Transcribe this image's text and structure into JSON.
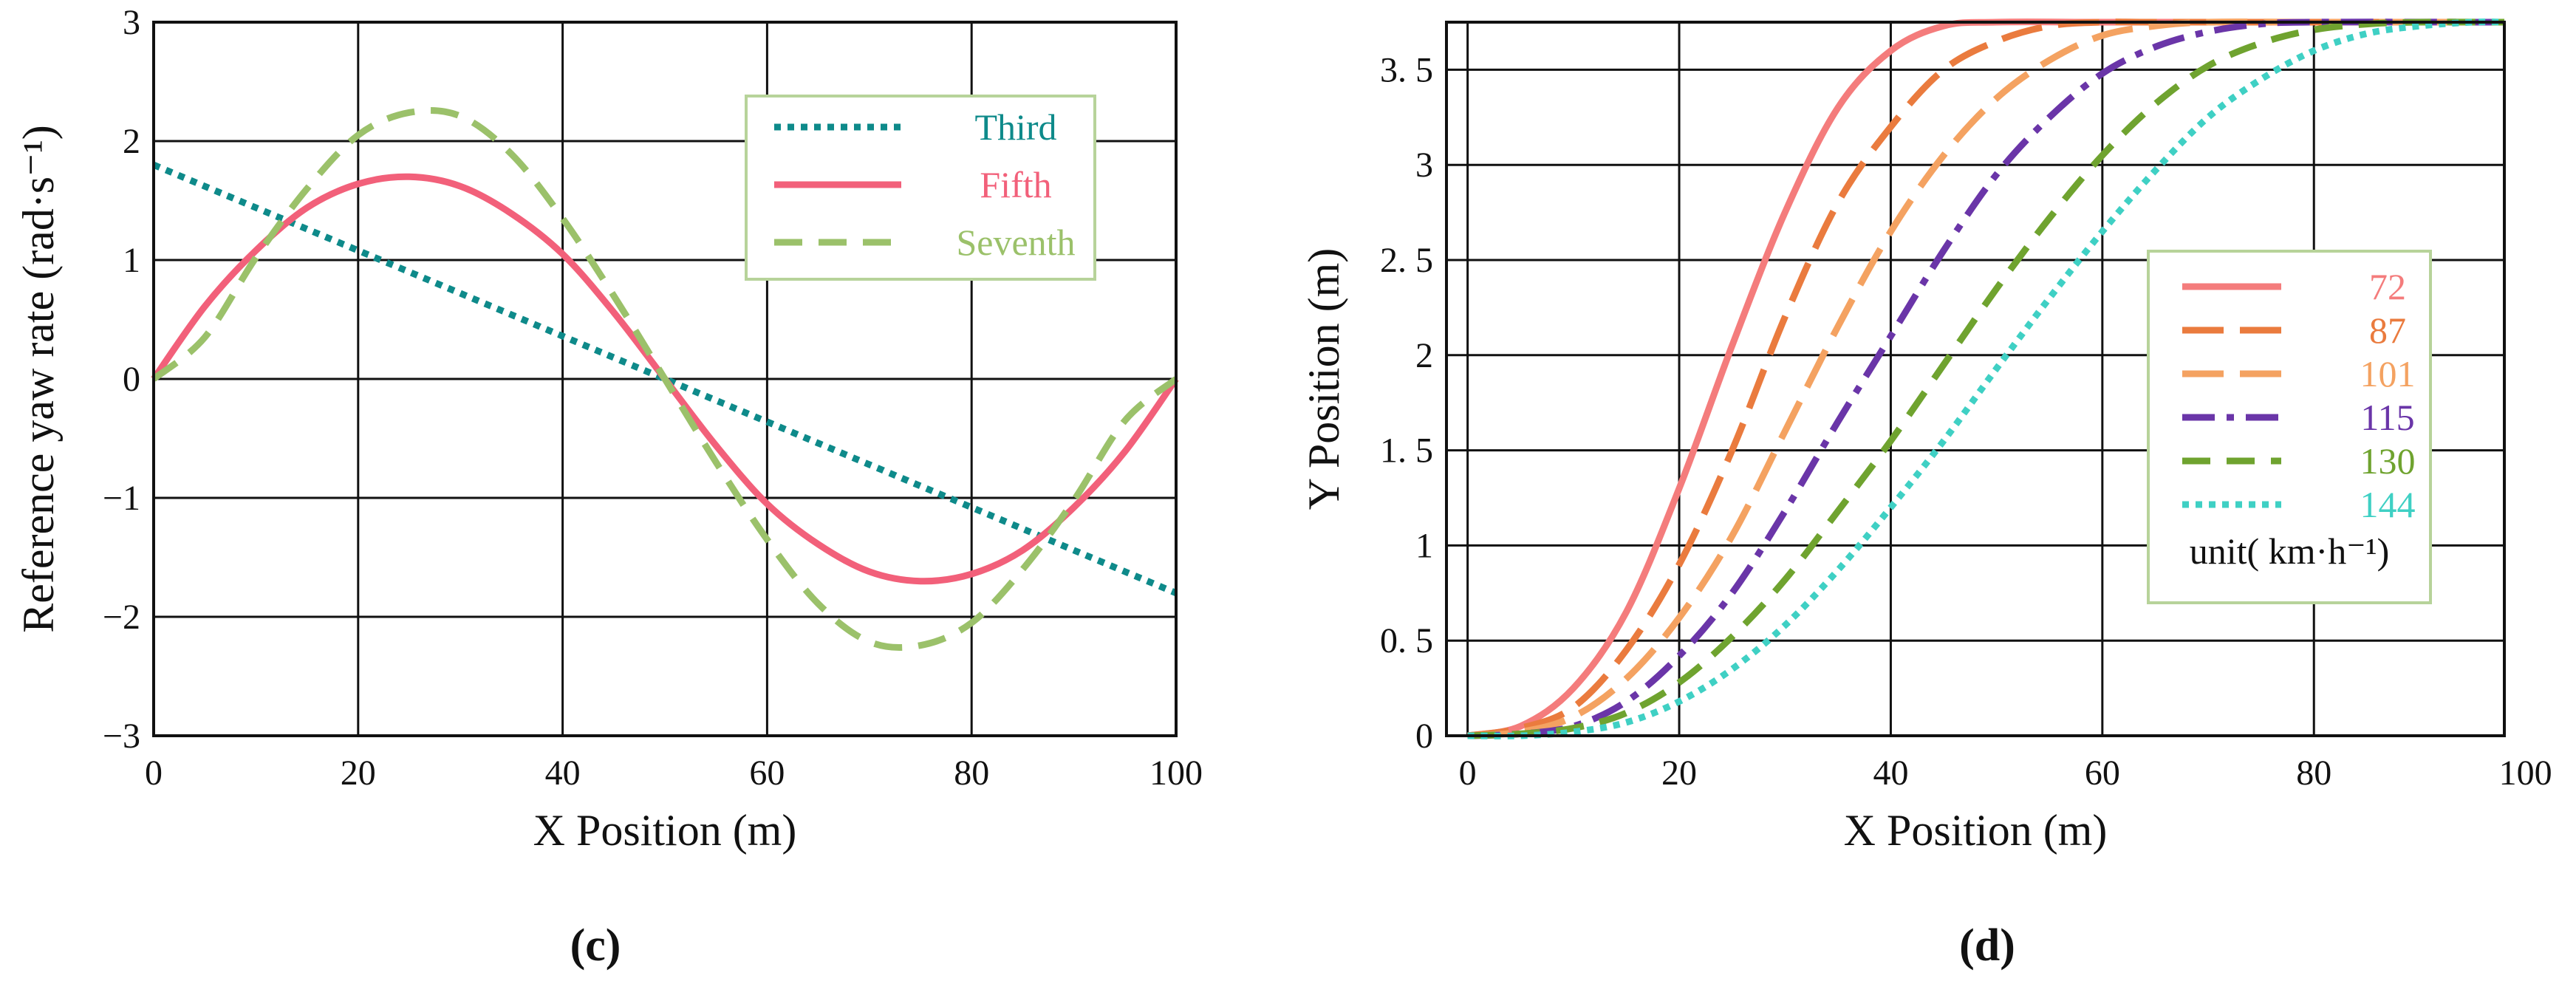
{
  "chart_data": [
    {
      "id": "c",
      "panel_label": "c",
      "type": "line",
      "xlabel": "X Position (m)",
      "ylabel": "Reference yaw rate (rad·s⁻¹)",
      "xlim": [
        0,
        100
      ],
      "ylim": [
        -3,
        3
      ],
      "xticks": [
        "0",
        "20",
        "40",
        "60",
        "80",
        "100"
      ],
      "yticks": [
        "−3",
        "−2",
        "−1",
        "0",
        "1",
        "2",
        "3"
      ],
      "grid": true,
      "legend_position": "top-right",
      "series": [
        {
          "name": "Third",
          "color": "#0e8a8a",
          "dash": "dotted",
          "x": [
            0,
            10,
            20,
            30,
            40,
            50,
            60,
            70,
            80,
            90,
            100
          ],
          "y": [
            1.8,
            1.44,
            1.08,
            0.72,
            0.36,
            0.0,
            -0.36,
            -0.72,
            -1.08,
            -1.44,
            -1.8
          ]
        },
        {
          "name": "Fifth",
          "color": "#f2607a",
          "dash": "solid",
          "x": [
            0,
            5,
            10,
            15,
            20,
            25,
            30,
            35,
            40,
            45,
            50,
            55,
            60,
            65,
            70,
            75,
            80,
            85,
            90,
            95,
            100
          ],
          "y": [
            0.0,
            0.61,
            1.08,
            1.44,
            1.64,
            1.7,
            1.62,
            1.39,
            1.05,
            0.56,
            0.0,
            -0.56,
            -1.05,
            -1.39,
            -1.62,
            -1.7,
            -1.64,
            -1.44,
            -1.08,
            -0.61,
            0.0
          ]
        },
        {
          "name": "Seventh",
          "color": "#9bc16a",
          "dash": "dashed",
          "x": [
            0,
            5,
            10,
            15,
            20,
            25,
            30,
            35,
            40,
            45,
            50,
            55,
            60,
            65,
            70,
            75,
            80,
            85,
            90,
            95,
            100
          ],
          "y": [
            0.0,
            0.35,
            1.02,
            1.6,
            2.05,
            2.24,
            2.21,
            1.89,
            1.35,
            0.7,
            0.0,
            -0.7,
            -1.35,
            -1.89,
            -2.21,
            -2.24,
            -2.05,
            -1.6,
            -1.02,
            -0.35,
            0.0
          ]
        }
      ]
    },
    {
      "id": "d",
      "panel_label": "d",
      "type": "line",
      "xlabel": "X Position (m)",
      "ylabel": "Y Position (m)",
      "xlim": [
        -2,
        98
      ],
      "ylim": [
        0,
        3.75
      ],
      "xticks": [
        "0",
        "20",
        "40",
        "60",
        "80",
        "100"
      ],
      "yticks": [
        "0",
        "0. 5",
        "1",
        "1. 5",
        "2",
        "2. 5",
        "3",
        "3. 5"
      ],
      "grid": true,
      "legend_position": "right",
      "legend_note": "unit( km·h⁻¹)",
      "series": [
        {
          "name": "72",
          "color": "#f47c7c",
          "dash": "solid",
          "x": [
            0,
            5,
            10,
            15,
            20,
            25,
            30,
            35,
            40,
            45,
            50,
            60,
            80,
            98
          ],
          "y": [
            0.0,
            0.05,
            0.25,
            0.65,
            1.3,
            2.05,
            2.75,
            3.3,
            3.6,
            3.73,
            3.75,
            3.75,
            3.75,
            3.75
          ]
        },
        {
          "name": "87",
          "color": "#ea7b3e",
          "dash": "long-dash",
          "x": [
            0,
            5,
            10,
            15,
            20,
            25,
            30,
            35,
            40,
            45,
            50,
            55,
            60,
            65,
            80,
            98
          ],
          "y": [
            0.0,
            0.04,
            0.15,
            0.45,
            0.9,
            1.5,
            2.2,
            2.8,
            3.2,
            3.5,
            3.65,
            3.73,
            3.75,
            3.75,
            3.75,
            3.75
          ]
        },
        {
          "name": "101",
          "color": "#f4a261",
          "dash": "long-dash",
          "x": [
            0,
            5,
            10,
            15,
            20,
            25,
            30,
            35,
            40,
            45,
            50,
            55,
            60,
            65,
            70,
            80,
            98
          ],
          "y": [
            0.0,
            0.02,
            0.1,
            0.3,
            0.62,
            1.05,
            1.6,
            2.15,
            2.65,
            3.05,
            3.35,
            3.55,
            3.68,
            3.73,
            3.75,
            3.75,
            3.75
          ]
        },
        {
          "name": "115",
          "color": "#6a35a8",
          "dash": "dash-dot",
          "x": [
            0,
            5,
            10,
            15,
            20,
            25,
            30,
            35,
            40,
            45,
            50,
            55,
            60,
            65,
            70,
            75,
            80,
            98
          ],
          "y": [
            0.0,
            0.01,
            0.05,
            0.18,
            0.42,
            0.75,
            1.18,
            1.65,
            2.1,
            2.55,
            2.95,
            3.25,
            3.48,
            3.62,
            3.7,
            3.74,
            3.75,
            3.75
          ]
        },
        {
          "name": "130",
          "color": "#6fa32f",
          "dash": "dashed",
          "x": [
            0,
            5,
            10,
            15,
            20,
            25,
            30,
            35,
            40,
            45,
            50,
            55,
            60,
            65,
            70,
            75,
            80,
            85,
            90,
            98
          ],
          "y": [
            0.0,
            0.01,
            0.04,
            0.12,
            0.28,
            0.52,
            0.82,
            1.18,
            1.55,
            1.95,
            2.35,
            2.72,
            3.05,
            3.32,
            3.52,
            3.64,
            3.71,
            3.74,
            3.75,
            3.75
          ]
        },
        {
          "name": "144",
          "color": "#3fd0c4",
          "dash": "dotted",
          "x": [
            0,
            5,
            10,
            15,
            20,
            25,
            30,
            35,
            40,
            45,
            50,
            55,
            60,
            65,
            70,
            75,
            80,
            85,
            90,
            95,
            98
          ],
          "y": [
            0.0,
            0.0,
            0.02,
            0.07,
            0.18,
            0.35,
            0.58,
            0.87,
            1.2,
            1.55,
            1.93,
            2.3,
            2.65,
            2.97,
            3.25,
            3.45,
            3.6,
            3.69,
            3.73,
            3.75,
            3.75
          ]
        }
      ]
    }
  ]
}
